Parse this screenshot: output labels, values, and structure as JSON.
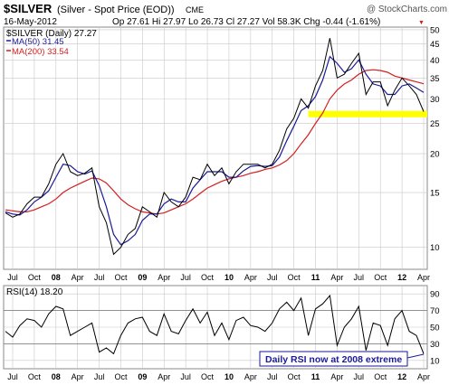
{
  "header": {
    "symbol": "$SILVER",
    "description": "(Silver - Spot Price (EOD))",
    "exchange": "CME",
    "watermark": "@ StockCharts.com",
    "date": "16-May-2012",
    "quote": "Op 27.61  Hi 27.97  Lo 26.73  Cl 27.27  Vol 58.3K  Chg -0.44 (-1.61%)",
    "quote_down_marker": "▼"
  },
  "legend": {
    "price": "$SILVER (Daily) 27.27",
    "ma50": "MA(50) 31.45",
    "ma200": "MA(200) 33.54"
  },
  "rsi_label": "RSI(14) 18.20",
  "annotation": "Daily RSI now at 2008 extreme",
  "colors": {
    "price": "#000000",
    "ma50": "#1a1a9a",
    "ma200": "#d21f1f",
    "support": "#ffff00",
    "rsi": "#000000",
    "grid": "#c8c8c8",
    "annotation_border": "#1a1a9a",
    "annotation_text": "#1a1a9a"
  },
  "chart_data": [
    {
      "type": "line",
      "panel": "price",
      "scale": "log",
      "x_tick_labels": [
        "Jul",
        "Oct",
        "08",
        "Apr",
        "Jul",
        "Oct",
        "09",
        "Apr",
        "Jul",
        "Oct",
        "10",
        "Apr",
        "Jul",
        "Oct",
        "11",
        "Apr",
        "Jul",
        "Oct",
        "12",
        "Apr"
      ],
      "y_ticks": [
        10,
        15,
        20,
        25,
        30,
        35,
        40,
        45,
        50
      ],
      "ylim": [
        8.5,
        51
      ],
      "support_level": 26.8,
      "x": [
        "2007-07",
        "2007-08",
        "2007-09",
        "2007-10",
        "2007-11",
        "2007-12",
        "2008-01",
        "2008-02",
        "2008-03",
        "2008-04",
        "2008-05",
        "2008-06",
        "2008-07",
        "2008-08",
        "2008-09",
        "2008-10",
        "2008-11",
        "2008-12",
        "2009-01",
        "2009-02",
        "2009-03",
        "2009-04",
        "2009-05",
        "2009-06",
        "2009-07",
        "2009-08",
        "2009-09",
        "2009-10",
        "2009-11",
        "2009-12",
        "2010-01",
        "2010-02",
        "2010-03",
        "2010-04",
        "2010-05",
        "2010-06",
        "2010-07",
        "2010-08",
        "2010-09",
        "2010-10",
        "2010-11",
        "2010-12",
        "2011-01",
        "2011-02",
        "2011-03",
        "2011-04",
        "2011-05",
        "2011-06",
        "2011-07",
        "2011-08",
        "2011-09",
        "2011-10",
        "2011-11",
        "2011-12",
        "2012-01",
        "2012-02",
        "2012-03",
        "2012-04",
        "2012-05"
      ],
      "series": [
        {
          "name": "$SILVER (Daily)",
          "values": [
            12.9,
            12.5,
            12.8,
            13.8,
            14.5,
            14.5,
            16.0,
            18.5,
            20.0,
            17.5,
            17.0,
            17.3,
            18.0,
            13.5,
            12.0,
            9.5,
            10.0,
            11.0,
            11.5,
            13.5,
            13.0,
            12.5,
            15.0,
            14.0,
            13.5,
            14.5,
            16.8,
            16.5,
            18.5,
            17.0,
            18.0,
            16.0,
            17.5,
            18.5,
            18.5,
            18.5,
            18.0,
            18.5,
            20.5,
            24.0,
            26.0,
            30.0,
            28.0,
            33.0,
            37.0,
            47.0,
            35.0,
            36.0,
            39.0,
            42.0,
            31.0,
            34.0,
            34.0,
            28.5,
            32.0,
            35.0,
            33.0,
            31.0,
            27.3
          ]
        },
        {
          "name": "MA(50)",
          "values": [
            13.0,
            12.8,
            12.7,
            13.2,
            14.0,
            14.5,
            15.2,
            16.8,
            18.5,
            18.3,
            17.5,
            17.2,
            17.6,
            15.8,
            13.5,
            11.0,
            10.2,
            10.5,
            11.0,
            12.2,
            12.8,
            12.8,
            13.8,
            14.3,
            14.0,
            14.0,
            15.5,
            16.5,
            17.5,
            17.5,
            17.5,
            16.8,
            16.8,
            17.6,
            18.2,
            18.3,
            18.2,
            18.3,
            19.5,
            22.0,
            24.5,
            27.5,
            28.5,
            30.5,
            34.5,
            41.0,
            39.0,
            36.5,
            37.5,
            40.0,
            36.0,
            33.5,
            33.0,
            31.0,
            31.0,
            33.0,
            33.5,
            32.5,
            31.45
          ]
        },
        {
          "name": "MA(200)",
          "values": [
            13.2,
            13.1,
            13.0,
            13.0,
            13.2,
            13.5,
            13.8,
            14.3,
            15.0,
            15.5,
            15.9,
            16.3,
            16.7,
            16.6,
            16.1,
            15.2,
            14.3,
            13.7,
            13.3,
            13.0,
            12.9,
            12.8,
            12.9,
            13.2,
            13.5,
            13.8,
            14.3,
            14.9,
            15.5,
            15.9,
            16.3,
            16.6,
            16.8,
            17.0,
            17.3,
            17.5,
            17.8,
            18.0,
            18.4,
            19.0,
            20.0,
            21.5,
            23.0,
            25.0,
            27.0,
            30.0,
            32.0,
            33.5,
            34.5,
            36.0,
            37.0,
            37.2,
            37.0,
            36.5,
            35.5,
            35.0,
            34.5,
            34.0,
            33.54
          ]
        }
      ]
    },
    {
      "type": "line",
      "panel": "rsi",
      "x_tick_labels": [
        "Jul",
        "Oct",
        "08",
        "Apr",
        "Jul",
        "Oct",
        "09",
        "Apr",
        "Jul",
        "Oct",
        "10",
        "Apr",
        "Jul",
        "Oct",
        "11",
        "Apr",
        "Jul",
        "Oct",
        "12",
        "Apr"
      ],
      "y_ticks": [
        10,
        30,
        50,
        70,
        90
      ],
      "ylim": [
        0,
        100
      ],
      "reference_lines": [
        30,
        70
      ],
      "series": [
        {
          "name": "RSI(14)",
          "values": [
            45,
            38,
            52,
            60,
            58,
            50,
            66,
            75,
            72,
            40,
            45,
            50,
            55,
            20,
            25,
            18,
            40,
            55,
            60,
            62,
            45,
            40,
            66,
            45,
            42,
            58,
            72,
            55,
            68,
            40,
            55,
            35,
            58,
            62,
            52,
            50,
            45,
            55,
            72,
            80,
            70,
            85,
            40,
            72,
            78,
            88,
            28,
            50,
            60,
            75,
            22,
            55,
            52,
            28,
            60,
            70,
            45,
            40,
            18
          ]
        }
      ]
    }
  ]
}
